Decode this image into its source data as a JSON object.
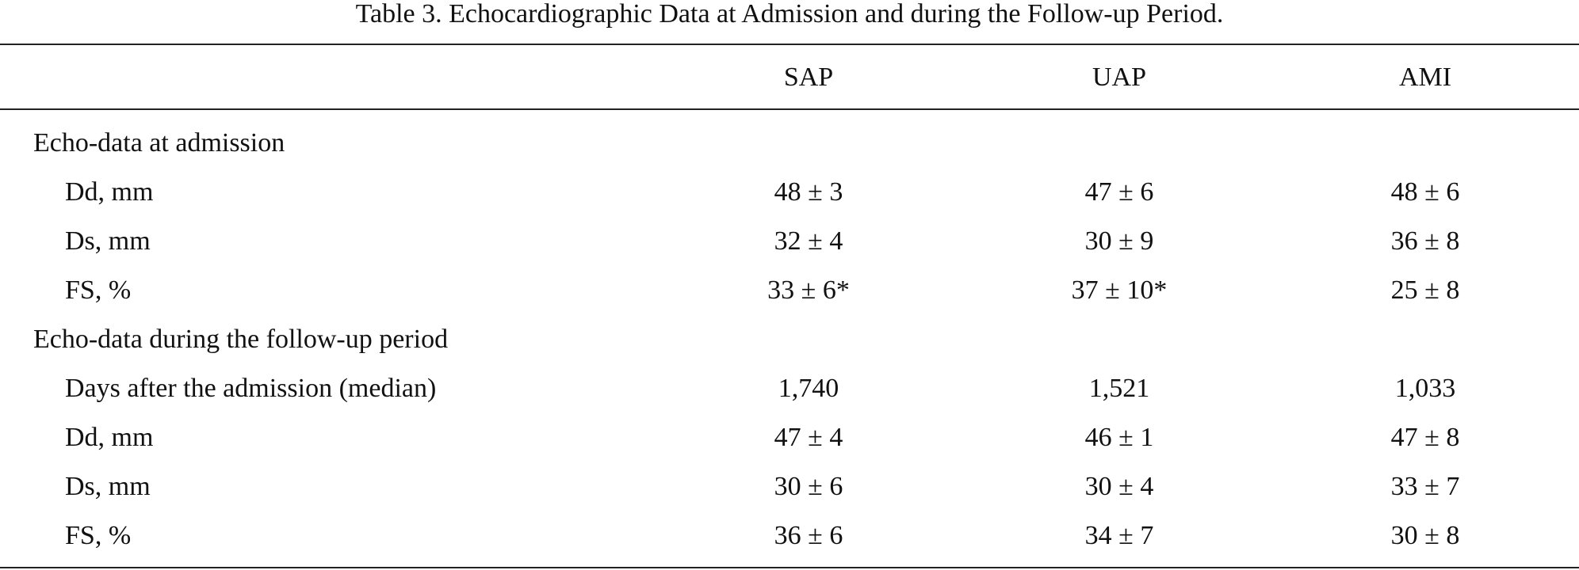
{
  "caption": "Table 3.  Echocardiographic Data at Admission and during the Follow-up Period.",
  "columns": [
    "",
    "SAP",
    "UAP",
    "AMI"
  ],
  "sections": [
    {
      "heading": "Echo-data at admission",
      "rows": [
        {
          "label": "Dd, mm",
          "sap": "48 ± 3",
          "uap": "47 ± 6",
          "ami": "48 ± 6"
        },
        {
          "label": "Ds, mm",
          "sap": "32 ± 4",
          "uap": "30 ± 9",
          "ami": "36 ± 8"
        },
        {
          "label": "FS, %",
          "sap": "33 ± 6*",
          "uap": "37 ± 10*",
          "ami": "25 ± 8"
        }
      ]
    },
    {
      "heading": "Echo-data during the follow-up period",
      "rows": [
        {
          "label": "Days after the admission (median)",
          "sap": "1,740",
          "uap": "1,521",
          "ami": "1,033"
        },
        {
          "label": "Dd, mm",
          "sap": "47 ± 4",
          "uap": "46 ± 1",
          "ami": "47 ± 8"
        },
        {
          "label": "Ds, mm",
          "sap": "30 ± 6",
          "uap": "30 ± 4",
          "ami": "33 ± 7"
        },
        {
          "label": "FS, %",
          "sap": "36 ± 6",
          "uap": "34 ± 7",
          "ami": "30 ± 8"
        }
      ]
    }
  ]
}
